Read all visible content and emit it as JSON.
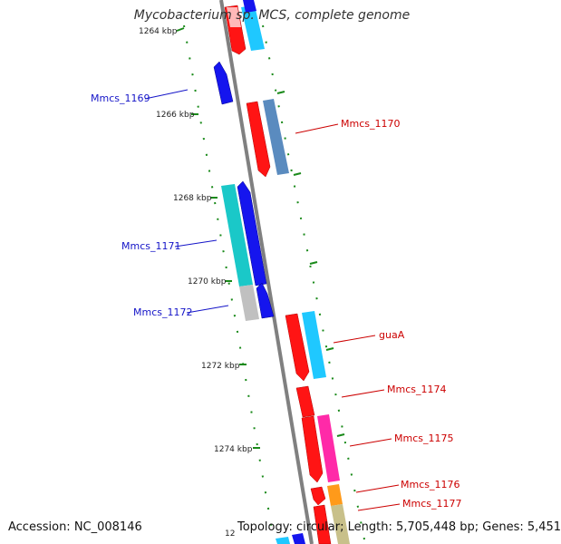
{
  "title": "Mycobacterium sp. MCS, complete genome",
  "accession": "Accession: NC_008146",
  "topology": "Topology: circular; Length: 5,705,448 bp; Genes: 5,451",
  "colors": {
    "backbone": "#808080",
    "tick": "#1a8a1a",
    "label_blue": "#1515c8",
    "label_red": "#cc0000"
  },
  "kbp_ticks": [
    "1264 kbp",
    "1266 kbp",
    "1268 kbp",
    "1270 kbp",
    "1272 kbp",
    "1274 kbp",
    "12"
  ],
  "gene_labels_left": [
    "Mmcs_1169",
    "Mmcs_1171",
    "Mmcs_1172"
  ],
  "gene_labels_right": [
    "Mmcs_1170",
    "guaA",
    "Mmcs_1174",
    "Mmcs_1175",
    "Mmcs_1176",
    "Mmcs_1177"
  ]
}
